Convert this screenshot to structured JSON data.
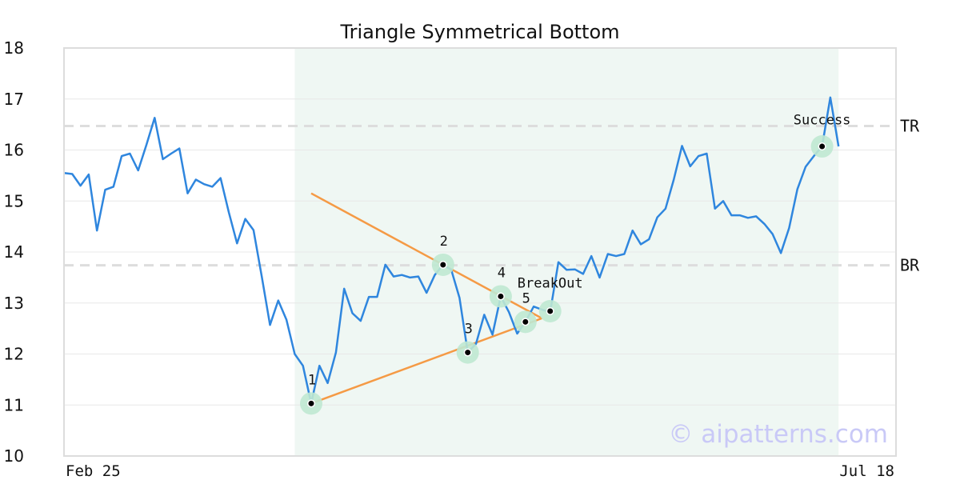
{
  "chart_data": {
    "type": "line",
    "title": "Triangle Symmetrical Bottom",
    "ylim": [
      10,
      18
    ],
    "yticks": [
      "10",
      "11",
      "12",
      "13",
      "14",
      "15",
      "16",
      "17",
      "18"
    ],
    "x_tick_labels": [
      "Feb 25",
      "Jul 18"
    ],
    "grid": true,
    "colors": {
      "price": "#2f86de",
      "pattern": "#f59a45",
      "highlight_region": "#eff7f3",
      "marker_halo": "#bfe8d2",
      "reference_lines": "#dddddd"
    },
    "series": [
      {
        "values": [
          15.55,
          15.53,
          15.3,
          15.52,
          14.42,
          15.22,
          15.28,
          15.88,
          15.93,
          15.6,
          16.1,
          16.63,
          15.82,
          15.93,
          16.03,
          15.15,
          15.42,
          15.33,
          15.28,
          15.45,
          14.78,
          14.17,
          14.65,
          14.43,
          13.52,
          12.57,
          13.05,
          12.67,
          12.0,
          11.77,
          11.03,
          11.77,
          11.43,
          12.03,
          13.28,
          12.8,
          12.65,
          13.12,
          13.12,
          13.75,
          13.52,
          13.55,
          13.5,
          13.52,
          13.2,
          13.55,
          13.75,
          13.65,
          13.1,
          12.03,
          12.2,
          12.77,
          12.38,
          13.13,
          12.82,
          12.4,
          12.63,
          12.93,
          12.87,
          12.82,
          13.8,
          13.65,
          13.66,
          13.57,
          13.92,
          13.5,
          13.96,
          13.92,
          13.96,
          14.42,
          14.15,
          14.25,
          14.68,
          14.85,
          15.42,
          16.08,
          15.68,
          15.88,
          15.93,
          14.85,
          15.0,
          14.72,
          14.72,
          14.67,
          14.7,
          14.55,
          14.35,
          13.98,
          14.47,
          15.23,
          15.67,
          15.88,
          16.07,
          17.03,
          16.07
        ]
      }
    ],
    "pattern_lines": [
      {
        "from": [
          30,
          15.15
        ],
        "to": [
          58,
          12.7
        ]
      },
      {
        "from": [
          30,
          11.03
        ],
        "to": [
          58,
          12.7
        ]
      }
    ],
    "highlight_range": [
      28,
      94
    ],
    "points": [
      {
        "label": "1",
        "x": 30,
        "y": 11.03
      },
      {
        "label": "2",
        "x": 46,
        "y": 13.75
      },
      {
        "label": "3",
        "x": 49,
        "y": 12.03
      },
      {
        "label": "4",
        "x": 53,
        "y": 13.13
      },
      {
        "label": "5",
        "x": 56,
        "y": 12.63
      },
      {
        "label": "",
        "x": 59,
        "y": 12.84
      },
      {
        "label": "",
        "x": 92,
        "y": 16.07
      }
    ],
    "annotations": [
      {
        "text": "BreakOut",
        "x": 59,
        "y": 13.3
      },
      {
        "text": "Success",
        "x": 92,
        "y": 16.5
      }
    ],
    "reference_lines": [
      {
        "label": "TR",
        "y": 16.47
      },
      {
        "label": "BR",
        "y": 13.74
      }
    ],
    "watermark": "© aipatterns.com"
  }
}
